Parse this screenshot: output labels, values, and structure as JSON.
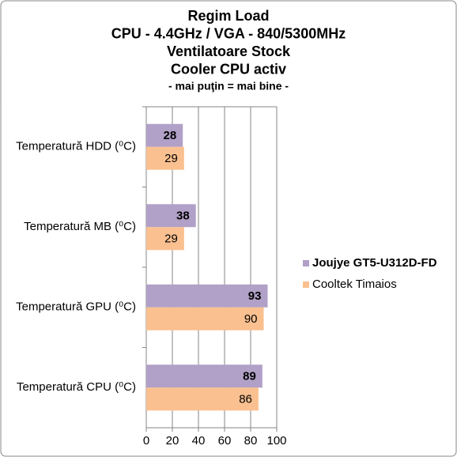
{
  "chart_data": {
    "type": "hbar",
    "title": [
      "Regim Load",
      "CPU - 4.4GHz / VGA - 840/5300MHz",
      "Ventilatoare Stock",
      "Cooler CPU activ"
    ],
    "subtitle": "- mai puţin = mai bine -",
    "categories": [
      "Temperatură  HDD (⁰C)",
      "Temperatură  MB (⁰C)",
      "Temperatură  GPU (⁰C)",
      "Temperatură  CPU (⁰C)"
    ],
    "series": [
      {
        "name": "Joujye GT5-U312D-FD",
        "color": "#b1a0c7",
        "values": [
          28,
          38,
          93,
          89
        ]
      },
      {
        "name": "Cooltek Timaios",
        "color": "#fac090",
        "values": [
          29,
          29,
          90,
          86
        ]
      }
    ],
    "xlim": [
      0,
      100
    ],
    "xticks": [
      0,
      20,
      40,
      60,
      80,
      100
    ],
    "grid": true,
    "legend": "right"
  }
}
